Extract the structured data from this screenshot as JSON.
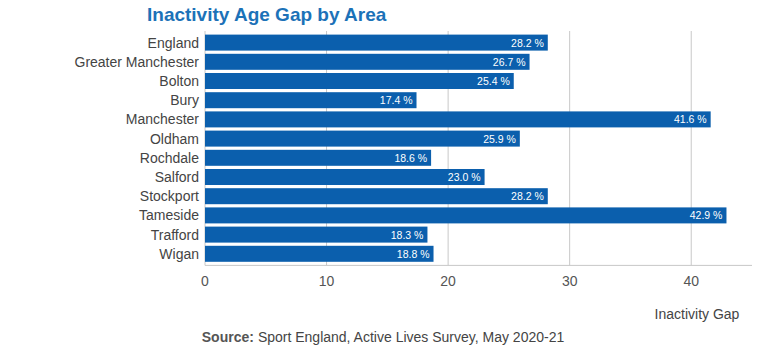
{
  "chart_data": {
    "type": "bar",
    "orientation": "horizontal",
    "title": "Inactivity Age Gap by Area",
    "x_label": "Inactivity Gap",
    "source_label": "Source:",
    "source": "Sport England, Active Lives Survey, May 2020-21",
    "categories": [
      "England",
      "Greater Manchester",
      "Bolton",
      "Bury",
      "Manchester",
      "Oldham",
      "Rochdale",
      "Salford",
      "Stockport",
      "Tameside",
      "Trafford",
      "Wigan"
    ],
    "values": [
      28.2,
      26.7,
      25.4,
      17.4,
      41.6,
      25.9,
      18.6,
      23.0,
      28.2,
      42.9,
      18.3,
      18.8
    ],
    "value_labels": [
      "28.2 %",
      "26.7 %",
      "25.4 %",
      "17.4 %",
      "41.6 %",
      "25.9 %",
      "18.6 %",
      "23.0 %",
      "28.2 %",
      "42.9 %",
      "18.3 %",
      "18.8 %"
    ],
    "data_labels": true,
    "color": "#0b5fad",
    "xlim": [
      0,
      45
    ],
    "xticks": [
      0,
      10,
      20,
      30,
      40
    ],
    "grid": true
  }
}
